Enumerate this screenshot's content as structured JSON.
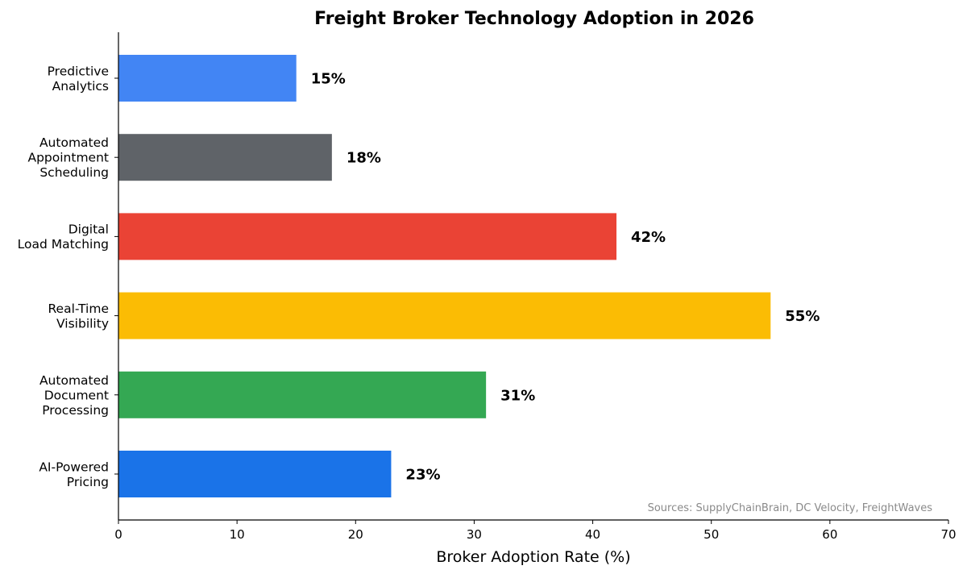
{
  "chart_data": {
    "type": "bar",
    "orientation": "horizontal",
    "title": "Freight Broker Technology Adoption in 2026",
    "xlabel": "Broker Adoption Rate (%)",
    "ylabel": "",
    "xlim": [
      0,
      70
    ],
    "xticks": [
      0,
      10,
      20,
      30,
      40,
      50,
      60,
      70
    ],
    "grid": false,
    "value_suffix": "%",
    "annotation": "Sources: SupplyChainBrain, DC Velocity, FreightWaves",
    "categories": [
      {
        "label": "Predictive Analytics",
        "lines": [
          "Predictive",
          "Analytics"
        ],
        "value": 15,
        "color": "#4285F4"
      },
      {
        "label": "Automated Appointment Scheduling",
        "lines": [
          "Automated",
          "Appointment",
          "Scheduling"
        ],
        "value": 18,
        "color": "#5F6368"
      },
      {
        "label": "Digital Load Matching",
        "lines": [
          "Digital",
          "Load Matching"
        ],
        "value": 42,
        "color": "#EA4335"
      },
      {
        "label": "Real-Time Visibility",
        "lines": [
          "Real-Time",
          "Visibility"
        ],
        "value": 55,
        "color": "#FBBC04"
      },
      {
        "label": "Automated Document Processing",
        "lines": [
          "Automated",
          "Document",
          "Processing"
        ],
        "value": 31,
        "color": "#34A853"
      },
      {
        "label": "AI-Powered Pricing",
        "lines": [
          "AI-Powered",
          "Pricing"
        ],
        "value": 23,
        "color": "#1A73E8"
      }
    ]
  }
}
